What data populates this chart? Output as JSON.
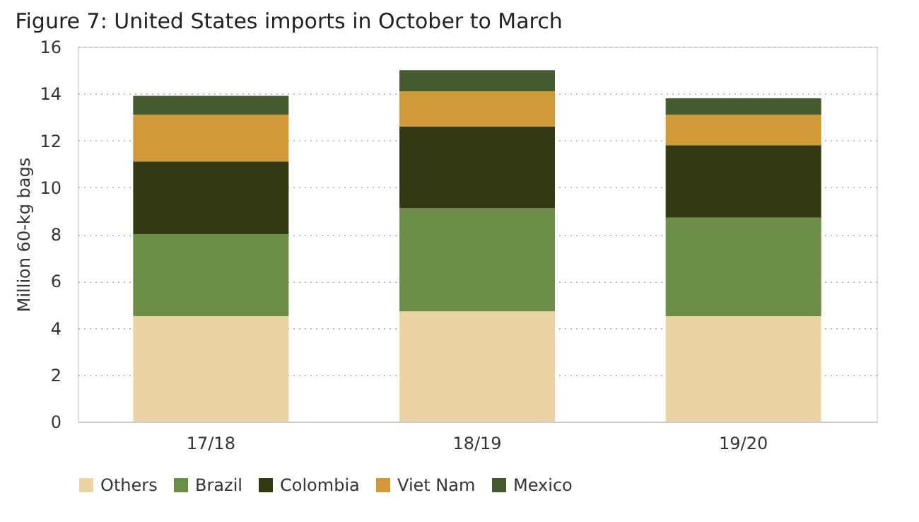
{
  "chart_data": {
    "type": "bar",
    "title": "Figure 7:  United States imports in October to March",
    "ylabel": "Million 60-kg bags",
    "categories": [
      "17/18",
      "18/19",
      "19/20"
    ],
    "stacked": true,
    "series": [
      {
        "name": "Others",
        "color": "#ecd5a5",
        "values": [
          4.5,
          4.7,
          4.5
        ]
      },
      {
        "name": "Brazil",
        "color": "#6b8f46",
        "values": [
          3.5,
          4.4,
          4.2
        ]
      },
      {
        "name": "Colombia",
        "color": "#333a14",
        "values": [
          3.1,
          3.5,
          3.1
        ]
      },
      {
        "name": "Viet Nam",
        "color": "#d09a38",
        "values": [
          2.0,
          1.5,
          1.3
        ]
      },
      {
        "name": "Mexico",
        "color": "#465a2d",
        "values": [
          0.8,
          0.9,
          0.7
        ]
      }
    ],
    "ylim": [
      0,
      16
    ],
    "yticks": [
      0,
      2,
      4,
      6,
      8,
      10,
      12,
      14,
      16
    ],
    "grid": "y",
    "legend": "bottom"
  }
}
